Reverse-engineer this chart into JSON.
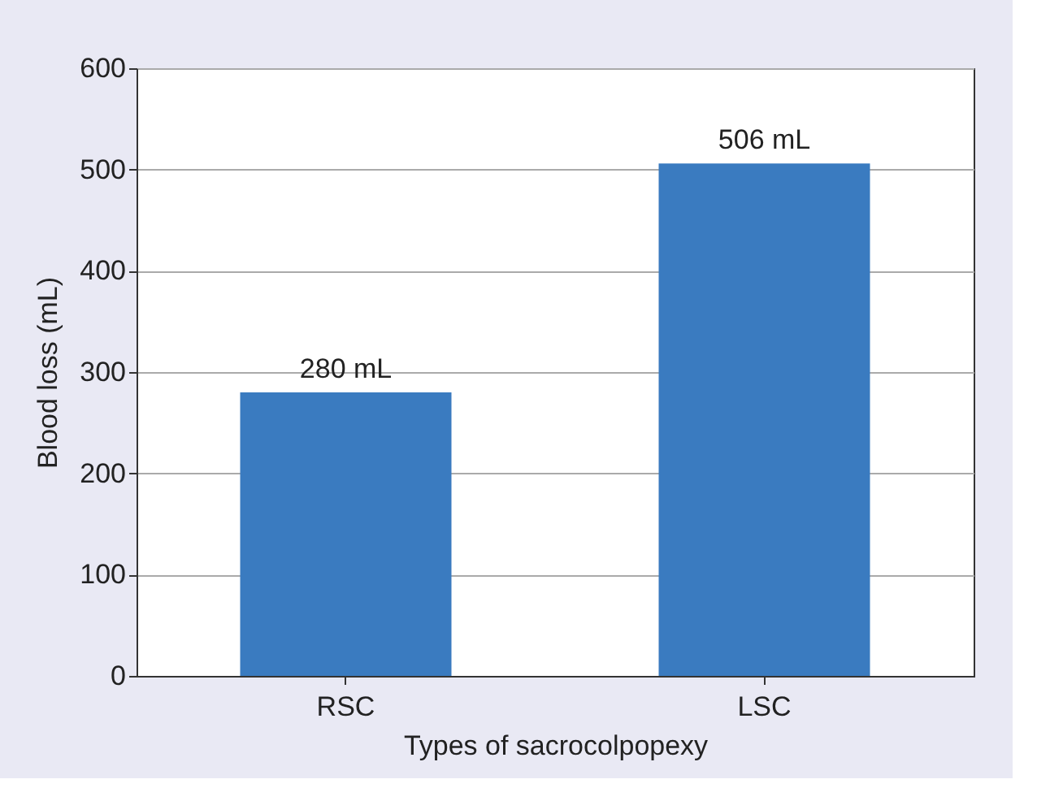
{
  "chart_data": {
    "type": "bar",
    "xlabel": "Types of sacrocolpopexy",
    "ylabel": "Blood loss (mL)",
    "categories": [
      "RSC",
      "LSC"
    ],
    "values": [
      280,
      506
    ],
    "value_labels": [
      "280 mL",
      "506 mL"
    ],
    "color": "#3a7bc0",
    "ylim": [
      0,
      600
    ],
    "yticks": [
      0,
      100,
      200,
      300,
      400,
      500,
      600
    ],
    "grid": "y"
  }
}
